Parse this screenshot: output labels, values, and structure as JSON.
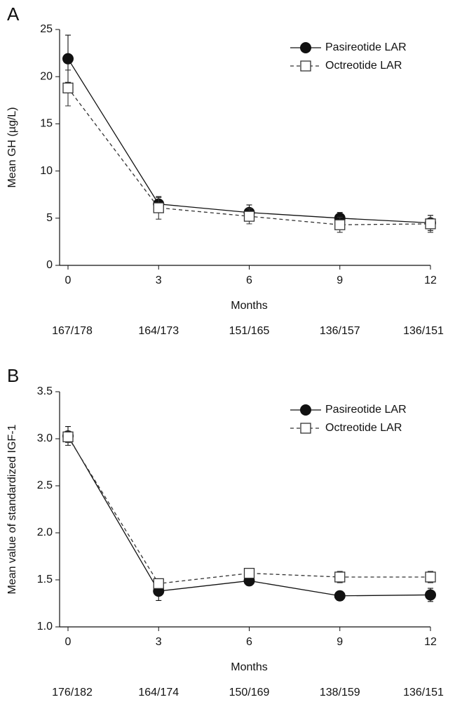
{
  "chart_data": [
    {
      "type": "line",
      "panel": "A",
      "y_label": "Mean GH (µg/L)",
      "x_label": "Months",
      "x": [
        0,
        3,
        6,
        9,
        12
      ],
      "xlim": [
        0,
        12
      ],
      "xticks": [
        0,
        3,
        6,
        9,
        12
      ],
      "ylim": [
        0,
        25
      ],
      "yticks": [
        0,
        5,
        10,
        15,
        20,
        25
      ],
      "counts": [
        "167/178",
        "164/173",
        "151/165",
        "136/157",
        "136/151"
      ],
      "legend": "upper right",
      "series": [
        {
          "name": "Pasireotide LAR",
          "color": "#111111",
          "marker": "circle",
          "line_style": "solid",
          "values": [
            21.9,
            6.5,
            5.6,
            5.0,
            4.5
          ],
          "errors": [
            2.5,
            0.7,
            0.8,
            0.6,
            0.8
          ]
        },
        {
          "name": "Octreotide LAR",
          "color": "#333333",
          "marker": "square",
          "line_style": "dashed",
          "values": [
            18.8,
            6.1,
            5.2,
            4.3,
            4.4
          ],
          "errors": [
            1.9,
            1.2,
            0.8,
            0.8,
            0.9
          ]
        }
      ]
    },
    {
      "type": "line",
      "panel": "B",
      "y_label": "Mean value of standardized IGF-1",
      "x_label": "Months",
      "x": [
        0,
        3,
        6,
        9,
        12
      ],
      "xlim": [
        0,
        12
      ],
      "xticks": [
        0,
        3,
        6,
        9,
        12
      ],
      "ylim": [
        1.0,
        3.5
      ],
      "yticks": [
        {
          "value": 1.0,
          "label": "1.0"
        },
        1.5,
        {
          "value": 2.0,
          "label": "2.0"
        },
        2.5,
        {
          "value": 3.0,
          "label": "3.0"
        },
        3.5
      ],
      "counts": [
        "176/182",
        "164/174",
        "150/169",
        "138/159",
        "136/151"
      ],
      "legend": "upper right",
      "series": [
        {
          "name": "Pasireotide LAR",
          "color": "#111111",
          "marker": "circle",
          "line_style": "solid",
          "values": [
            3.03,
            1.38,
            1.49,
            1.33,
            1.34
          ],
          "errors": [
            0.1,
            0.1,
            0.05,
            0.05,
            0.07
          ]
        },
        {
          "name": "Octreotide LAR",
          "color": "#333333",
          "marker": "square",
          "line_style": "dashed",
          "values": [
            3.02,
            1.46,
            1.57,
            1.53,
            1.53
          ],
          "errors": [
            0.06,
            0.05,
            0.05,
            0.06,
            0.06
          ]
        }
      ]
    }
  ]
}
